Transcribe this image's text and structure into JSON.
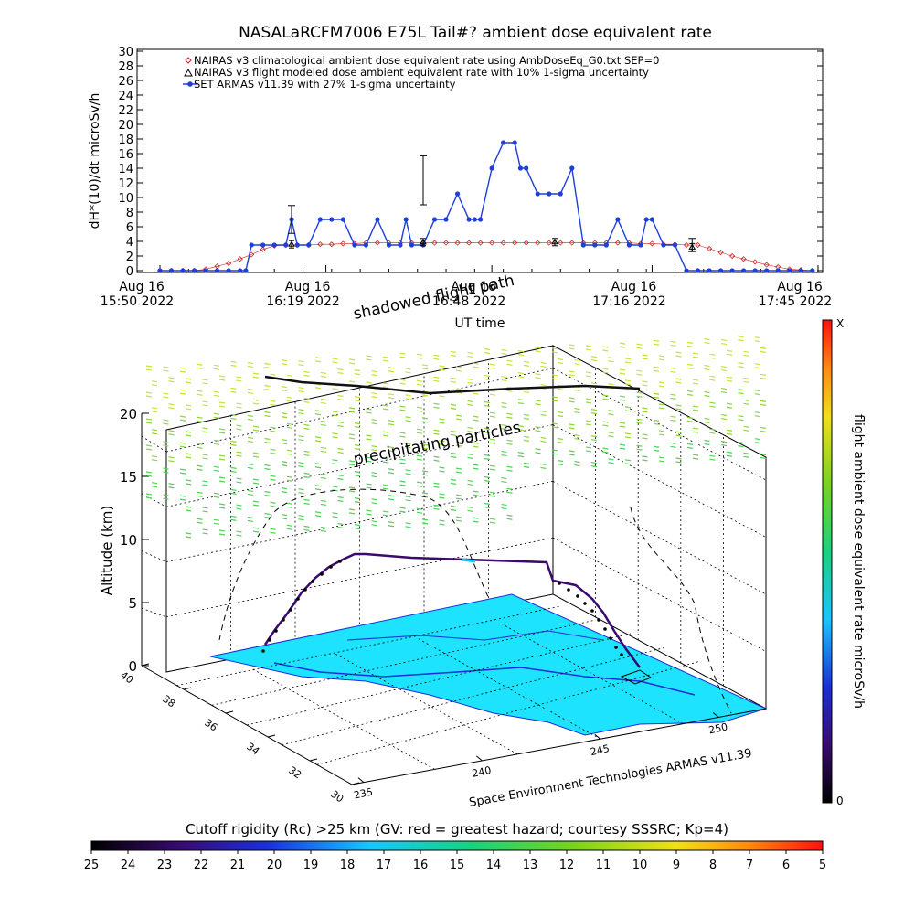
{
  "chart_data": [
    {
      "type": "line",
      "title": "NASALaRCFM7006  E75L Tail#? ambient dose equivalent rate",
      "ylabel": "dH*(10)/dt microSv/h",
      "xlabel": "UT time",
      "ylim": [
        0,
        30
      ],
      "yticks": [
        0,
        2,
        4,
        6,
        8,
        10,
        12,
        14,
        16,
        18,
        20,
        22,
        24,
        26,
        28,
        30
      ],
      "xlim": [
        0,
        115
      ],
      "xtick_labels": [
        {
          "x": 0,
          "line1": "Aug 16",
          "line2": "15:50 2022"
        },
        {
          "x": 29,
          "line1": "Aug 16",
          "line2": "16:19 2022"
        },
        {
          "x": 58,
          "line1": "Aug 16",
          "line2": "16:48 2022"
        },
        {
          "x": 86,
          "line1": "Aug 16",
          "line2": "17:16 2022"
        },
        {
          "x": 115,
          "line1": "Aug 16",
          "line2": "17:45 2022"
        }
      ],
      "legend": "top-left",
      "series": [
        {
          "name": "NAIRAS v3 climatological ambient dose equivalent rate using AmbDoseEq_G0.txt SEP=0",
          "color": "#cc2222",
          "marker": "diamond",
          "x": [
            0,
            2,
            4,
            6,
            8,
            10,
            12,
            14,
            16,
            18,
            20,
            22,
            24,
            26,
            28,
            30,
            32,
            34,
            36,
            38,
            40,
            42,
            44,
            46,
            48,
            50,
            52,
            54,
            56,
            58,
            60,
            62,
            64,
            66,
            68,
            70,
            72,
            74,
            76,
            78,
            80,
            82,
            84,
            86,
            88,
            90,
            92,
            94,
            96,
            98,
            100,
            102,
            104,
            106,
            108,
            110,
            112,
            114
          ],
          "values": [
            0,
            0,
            0,
            0,
            0.2,
            0.6,
            1.0,
            1.6,
            2.2,
            2.9,
            3.4,
            3.5,
            3.5,
            3.5,
            3.6,
            3.6,
            3.7,
            3.7,
            3.8,
            3.8,
            3.8,
            3.8,
            3.8,
            3.8,
            3.8,
            3.8,
            3.8,
            3.8,
            3.8,
            3.8,
            3.8,
            3.8,
            3.8,
            3.8,
            3.8,
            3.8,
            3.8,
            3.8,
            3.8,
            3.8,
            3.8,
            3.8,
            3.7,
            3.7,
            3.6,
            3.6,
            3.5,
            3.5,
            3.0,
            2.5,
            2.0,
            1.6,
            1.2,
            0.8,
            0.5,
            0.2,
            0.1,
            0
          ]
        },
        {
          "name": "NAIRAS v3 flight modeled dose ambient equivalent rate with 10% 1-sigma uncertainty",
          "color": "#000000",
          "marker": "triangle",
          "x": [
            23,
            46,
            69,
            93
          ],
          "values": [
            3.6,
            3.9,
            3.9,
            3.2
          ]
        },
        {
          "name": "SET ARMAS v11.39 with 27% 1-sigma uncertainty",
          "color": "#1f3fd6",
          "marker": "circle",
          "x": [
            0,
            2,
            4,
            6,
            8,
            10,
            12,
            14,
            15,
            16,
            18,
            20,
            22,
            23,
            24,
            26,
            28,
            30,
            32,
            34,
            36,
            38,
            40,
            42,
            43,
            44,
            46,
            48,
            50,
            52,
            54,
            55,
            56,
            58,
            60,
            62,
            63,
            64,
            66,
            68,
            70,
            72,
            74,
            76,
            78,
            80,
            82,
            84,
            85,
            86,
            88,
            90,
            92,
            94,
            96,
            98,
            100,
            102,
            104,
            106,
            108,
            110,
            112,
            114
          ],
          "values": [
            0,
            0,
            0,
            0,
            0,
            0,
            0,
            0,
            0,
            3.5,
            3.5,
            3.5,
            3.5,
            7.0,
            3.5,
            3.5,
            7.0,
            7.0,
            7.0,
            3.5,
            3.5,
            7.0,
            3.5,
            3.5,
            7.0,
            3.5,
            3.5,
            7.0,
            7.0,
            10.5,
            7.0,
            7.0,
            7.0,
            14.0,
            17.5,
            17.5,
            14.0,
            14.0,
            10.5,
            10.5,
            10.5,
            14.0,
            3.5,
            3.5,
            3.5,
            7.0,
            3.5,
            3.5,
            7.0,
            7.0,
            3.5,
            3.5,
            0,
            0,
            0,
            0,
            0,
            0,
            0,
            0,
            0,
            0,
            0,
            0
          ],
          "error_bars": [
            {
              "x": 23,
              "value": 7.0,
              "low": 5.1,
              "high": 8.9
            },
            {
              "x": 46,
              "value": 12.4,
              "low": 9.0,
              "high": 15.7
            },
            {
              "x": 93,
              "value": 3.5,
              "low": 2.6,
              "high": 4.4
            }
          ]
        }
      ]
    },
    {
      "type": "scatter",
      "title": "",
      "zlabel": "Altitude (km)",
      "zlim": [
        0,
        20
      ],
      "zticks": [
        0,
        5,
        10,
        15,
        20
      ],
      "lat_ticks": [
        40,
        38,
        36,
        34,
        32,
        30
      ],
      "lon_ticks": [
        235,
        240,
        245,
        250
      ],
      "annotations": [
        "shadowed flight path",
        "precipitating particles"
      ],
      "credit": "Space Environment Technologies ARMAS v11.39",
      "colorbar": {
        "label": "flight ambient dose equivalent rate microSv/h",
        "min_label": "0",
        "max_label": "X"
      },
      "flight_altitude_km": [
        0,
        2,
        4,
        6,
        7,
        7.2,
        7.3,
        7.2,
        7.1,
        7.0,
        6.9,
        6.8,
        6.7,
        6.0,
        4.5,
        2.8,
        1.5,
        0.6,
        0.2,
        0
      ],
      "flight_dose": [
        0,
        0.5,
        1,
        2,
        3,
        3.5,
        3.5,
        3.5,
        7,
        3.5,
        3.5,
        3.5,
        3.5,
        3.5,
        3.5,
        3.5,
        3.0,
        2.0,
        1.0,
        0
      ]
    }
  ],
  "cutoff_bar": {
    "title": "Cutoff rigidity (Rc) >25 km (GV: red = greatest hazard; courtesy SSSRC; Kp=4)",
    "labels": [
      "25",
      "24",
      "23",
      "22",
      "21",
      "20",
      "19",
      "18",
      "17",
      "16",
      "15",
      "14",
      "13",
      "12",
      "11",
      "10",
      "9",
      "8",
      "7",
      "6",
      "5"
    ]
  }
}
